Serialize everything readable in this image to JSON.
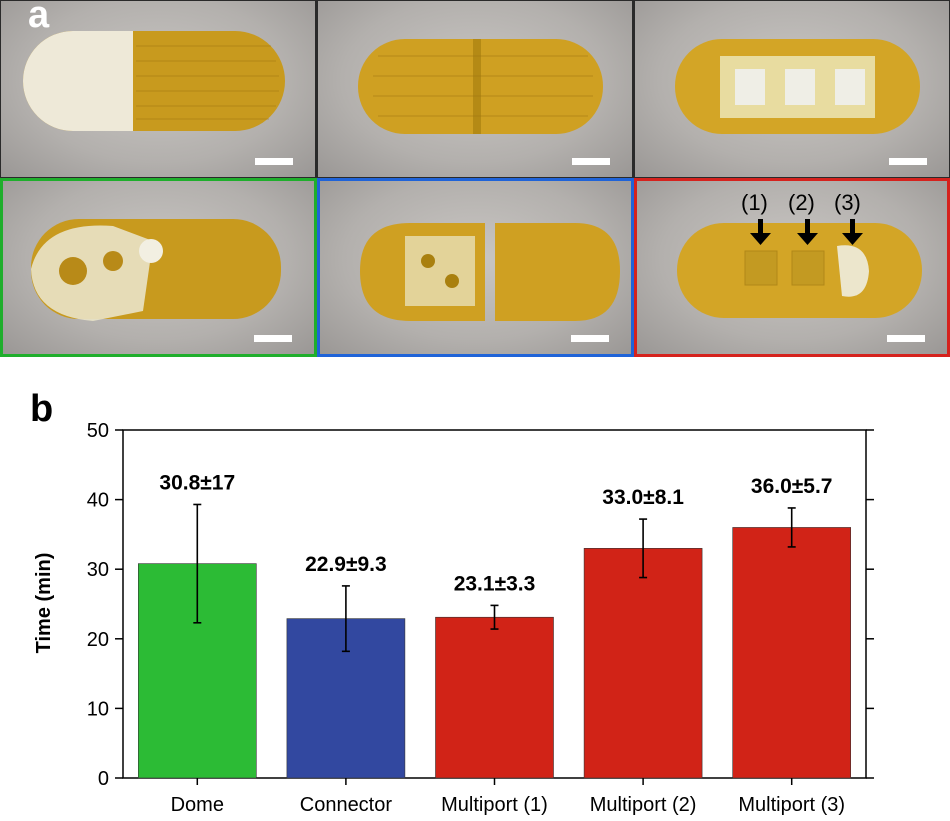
{
  "panel_a": {
    "label": "a",
    "port_labels": [
      "(1)",
      "(2)",
      "(3)"
    ],
    "border_colors": {
      "green": "#1fae2c",
      "blue": "#1f63d8",
      "red": "#d5221d"
    }
  },
  "panel_b": {
    "label": "b"
  },
  "chart_data": {
    "type": "bar",
    "title": "",
    "xlabel": "",
    "ylabel": "Time (min)",
    "ylim": [
      0,
      50
    ],
    "yticks": [
      0,
      10,
      20,
      30,
      40,
      50
    ],
    "categories": [
      "Dome",
      "Connector",
      "Multiport (1)",
      "Multiport (2)",
      "Multiport (3)"
    ],
    "values": [
      30.8,
      22.9,
      23.1,
      33.0,
      36.0
    ],
    "errors": [
      8.5,
      4.7,
      1.7,
      4.2,
      2.8
    ],
    "data_labels": [
      "30.8±17",
      "22.9±9.3",
      "23.1±3.3",
      "33.0±8.1",
      "36.0±5.7"
    ],
    "colors": [
      "#2cbb35",
      "#3248a0",
      "#d12317",
      "#d12317",
      "#d12317"
    ]
  }
}
